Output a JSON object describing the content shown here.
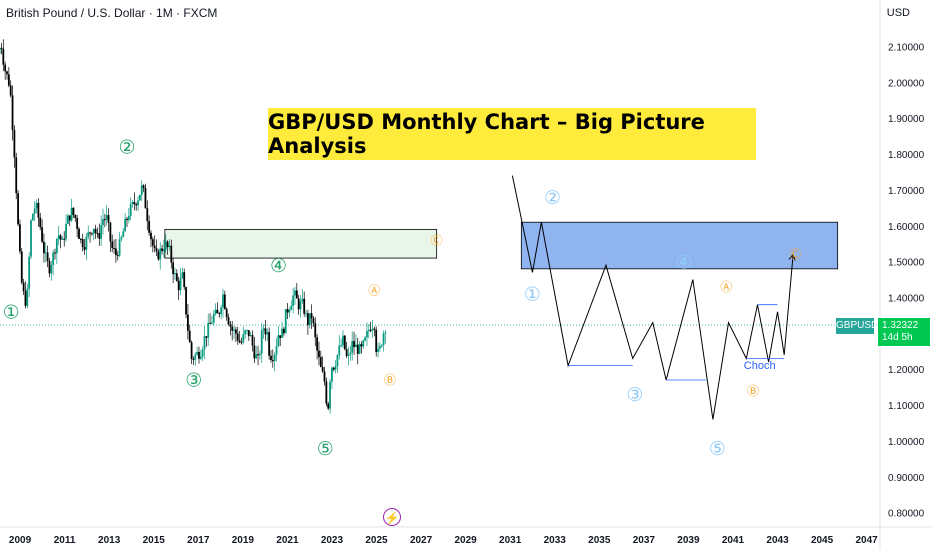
{
  "header": {
    "symbol_title": "British Pound / U.S. Dollar · 1M · FXCM",
    "currency": "USD"
  },
  "banner": {
    "text": "GBP/USD Monthly Chart – Big Picture Analysis",
    "color": "#ffeb3b"
  },
  "price_label": {
    "symbol": "GBPUSD",
    "price": "1.32322",
    "countdown": "14d 5h"
  },
  "colors": {
    "bull": "#089981",
    "bear": "#000000",
    "wave": "#26a269",
    "projection": "#90caf9",
    "abc": "#f5a623",
    "zone_green": "#e8f5e9",
    "zone_blue": "#90b4f0"
  },
  "chart_data": {
    "type": "candlestick",
    "x_axis": {
      "ticks": [
        "2009",
        "2011",
        "2013",
        "2015",
        "2017",
        "2019",
        "2021",
        "2023",
        "2025",
        "2027",
        "2029",
        "2031",
        "2033",
        "2035",
        "2037",
        "2039",
        "2041",
        "2043",
        "2045",
        "2047"
      ],
      "range": [
        2008.1,
        2047.6
      ]
    },
    "y_axis": {
      "ticks": [
        "2.10000",
        "2.00000",
        "1.90000",
        "1.80000",
        "1.70000",
        "1.60000",
        "1.50000",
        "1.40000",
        "1.30000",
        "1.20000",
        "1.10000",
        "1.00000",
        "0.90000",
        "0.80000"
      ],
      "range": [
        0.76,
        2.16
      ]
    },
    "current_price": 1.32322,
    "price_path": [
      [
        2008.0,
        2.08
      ],
      [
        2008.15,
        2.11
      ],
      [
        2008.3,
        2.04
      ],
      [
        2008.55,
        1.99
      ],
      [
        2008.75,
        1.8
      ],
      [
        2008.95,
        1.55
      ],
      [
        2009.1,
        1.42
      ],
      [
        2009.3,
        1.38
      ],
      [
        2009.5,
        1.62
      ],
      [
        2009.7,
        1.66
      ],
      [
        2009.9,
        1.6
      ],
      [
        2010.1,
        1.52
      ],
      [
        2010.3,
        1.48
      ],
      [
        2010.5,
        1.52
      ],
      [
        2010.7,
        1.58
      ],
      [
        2010.9,
        1.55
      ],
      [
        2011.1,
        1.61
      ],
      [
        2011.3,
        1.64
      ],
      [
        2011.5,
        1.62
      ],
      [
        2011.7,
        1.56
      ],
      [
        2011.9,
        1.55
      ],
      [
        2012.1,
        1.58
      ],
      [
        2012.3,
        1.6
      ],
      [
        2012.5,
        1.56
      ],
      [
        2012.7,
        1.62
      ],
      [
        2012.9,
        1.62
      ],
      [
        2013.1,
        1.54
      ],
      [
        2013.3,
        1.52
      ],
      [
        2013.5,
        1.55
      ],
      [
        2013.7,
        1.6
      ],
      [
        2013.9,
        1.64
      ],
      [
        2014.1,
        1.66
      ],
      [
        2014.3,
        1.68
      ],
      [
        2014.5,
        1.71
      ],
      [
        2014.7,
        1.63
      ],
      [
        2014.9,
        1.56
      ],
      [
        2015.1,
        1.51
      ],
      [
        2015.3,
        1.53
      ],
      [
        2015.5,
        1.55
      ],
      [
        2015.7,
        1.53
      ],
      [
        2015.9,
        1.47
      ],
      [
        2016.1,
        1.43
      ],
      [
        2016.3,
        1.46
      ],
      [
        2016.5,
        1.33
      ],
      [
        2016.7,
        1.23
      ],
      [
        2016.9,
        1.24
      ],
      [
        2017.1,
        1.25
      ],
      [
        2017.3,
        1.29
      ],
      [
        2017.5,
        1.32
      ],
      [
        2017.7,
        1.35
      ],
      [
        2017.9,
        1.35
      ],
      [
        2018.1,
        1.41
      ],
      [
        2018.3,
        1.35
      ],
      [
        2018.5,
        1.31
      ],
      [
        2018.7,
        1.3
      ],
      [
        2018.9,
        1.27
      ],
      [
        2019.1,
        1.3
      ],
      [
        2019.3,
        1.3
      ],
      [
        2019.5,
        1.25
      ],
      [
        2019.7,
        1.22
      ],
      [
        2019.9,
        1.32
      ],
      [
        2020.1,
        1.3
      ],
      [
        2020.2,
        1.24
      ],
      [
        2020.4,
        1.24
      ],
      [
        2020.6,
        1.3
      ],
      [
        2020.8,
        1.3
      ],
      [
        2020.95,
        1.36
      ],
      [
        2021.1,
        1.38
      ],
      [
        2021.3,
        1.41
      ],
      [
        2021.5,
        1.38
      ],
      [
        2021.7,
        1.38
      ],
      [
        2021.9,
        1.33
      ],
      [
        2022.1,
        1.35
      ],
      [
        2022.3,
        1.26
      ],
      [
        2022.5,
        1.2
      ],
      [
        2022.7,
        1.16
      ],
      [
        2022.8,
        1.07
      ],
      [
        2022.95,
        1.21
      ],
      [
        2023.1,
        1.21
      ],
      [
        2023.3,
        1.25
      ],
      [
        2023.5,
        1.28
      ],
      [
        2023.7,
        1.22
      ],
      [
        2023.9,
        1.27
      ],
      [
        2024.1,
        1.26
      ],
      [
        2024.3,
        1.25
      ],
      [
        2024.5,
        1.28
      ],
      [
        2024.7,
        1.32
      ],
      [
        2024.9,
        1.33
      ],
      [
        2025.0,
        1.25
      ],
      [
        2025.1,
        1.24
      ],
      [
        2025.3,
        1.3
      ],
      [
        2025.4,
        1.32
      ]
    ],
    "zones": [
      {
        "name": "supply-zone",
        "x": [
          2015.5,
          2027.7
        ],
        "y": [
          1.51,
          1.59
        ]
      },
      {
        "name": "projection-zone",
        "x": [
          2031.5,
          2045.7
        ],
        "y": [
          1.48,
          1.61
        ]
      }
    ],
    "projection_path": [
      [
        2031.1,
        1.74
      ],
      [
        2032.0,
        1.47
      ],
      [
        2032.4,
        1.61
      ],
      [
        2033.6,
        1.21
      ],
      [
        2035.3,
        1.49
      ],
      [
        2036.5,
        1.23
      ],
      [
        2037.4,
        1.33
      ],
      [
        2038.0,
        1.17
      ],
      [
        2039.2,
        1.45
      ],
      [
        2040.1,
        1.06
      ],
      [
        2040.8,
        1.33
      ],
      [
        2041.6,
        1.23
      ],
      [
        2042.1,
        1.38
      ],
      [
        2042.6,
        1.22
      ],
      [
        2043.0,
        1.36
      ],
      [
        2043.3,
        1.24
      ],
      [
        2043.7,
        1.52
      ]
    ],
    "wave_labels": [
      {
        "text": "①",
        "x": 2008.6,
        "y": 1.36,
        "style": "wave"
      },
      {
        "text": "②",
        "x": 2013.8,
        "y": 1.82,
        "style": "wave"
      },
      {
        "text": "③",
        "x": 2016.8,
        "y": 1.17,
        "style": "wave"
      },
      {
        "text": "④",
        "x": 2020.6,
        "y": 1.49,
        "style": "wave"
      },
      {
        "text": "⑤",
        "x": 2022.7,
        "y": 0.98,
        "style": "wave"
      },
      {
        "text": "Ⓐ",
        "x": 2024.9,
        "y": 1.42,
        "style": "abc"
      },
      {
        "text": "Ⓑ",
        "x": 2025.6,
        "y": 1.17,
        "style": "abc"
      },
      {
        "text": "Ⓒ",
        "x": 2027.7,
        "y": 1.56,
        "style": "abc"
      },
      {
        "text": "①",
        "x": 2032.0,
        "y": 1.41,
        "style": "projection"
      },
      {
        "text": "②",
        "x": 2032.9,
        "y": 1.68,
        "style": "projection"
      },
      {
        "text": "③",
        "x": 2036.6,
        "y": 1.13,
        "style": "projection"
      },
      {
        "text": "④",
        "x": 2038.8,
        "y": 1.5,
        "style": "projection"
      },
      {
        "text": "⑤",
        "x": 2040.3,
        "y": 0.98,
        "style": "projection"
      },
      {
        "text": "Ⓐ",
        "x": 2040.7,
        "y": 1.43,
        "style": "abc"
      },
      {
        "text": "Ⓑ",
        "x": 2041.9,
        "y": 1.14,
        "style": "abc"
      },
      {
        "text": "Ⓒ",
        "x": 2043.8,
        "y": 1.52,
        "style": "abc"
      }
    ],
    "annotation": {
      "text": "Choch",
      "x": 2042.2,
      "y": 1.2
    }
  }
}
